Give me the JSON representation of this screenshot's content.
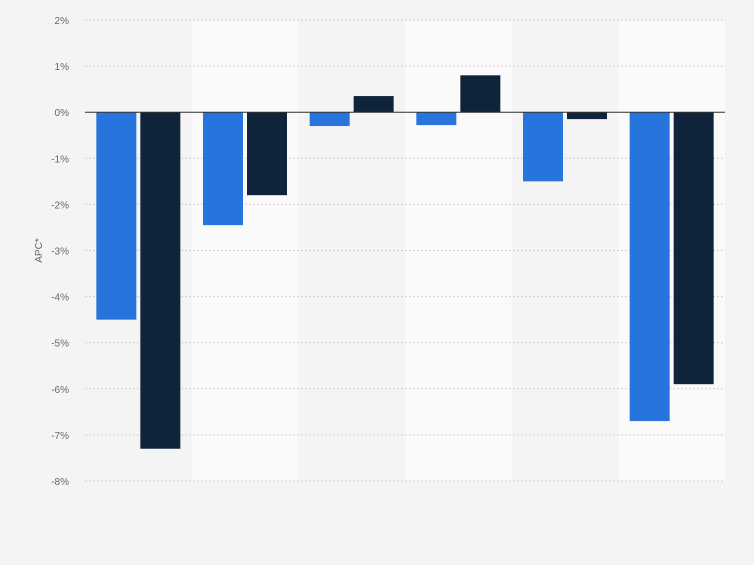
{
  "chart_data": {
    "type": "bar",
    "title": "",
    "xlabel": "",
    "ylabel": "APC*",
    "ylim": [
      -8,
      2
    ],
    "yticks": [
      2,
      1,
      0,
      -1,
      -2,
      -3,
      -4,
      -5,
      -6,
      -7,
      -8
    ],
    "ytick_suffix": "%",
    "grid": true,
    "legend": "none",
    "categories": [
      "",
      "",
      "",
      "",
      "",
      ""
    ],
    "series": [
      {
        "color": "#2775dc",
        "values": [
          -4.5,
          -2.45,
          -0.3,
          -0.28,
          -1.5,
          -6.7
        ]
      },
      {
        "color": "#0f243b",
        "values": [
          -7.3,
          -1.8,
          0.35,
          0.8,
          -0.15,
          -5.9
        ]
      }
    ]
  }
}
